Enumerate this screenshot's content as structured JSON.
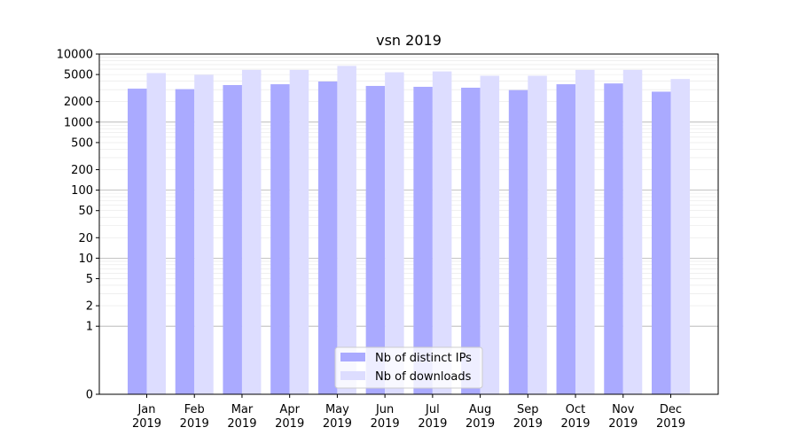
{
  "chart_data": {
    "type": "bar",
    "title": "vsn 2019",
    "xlabel": "",
    "ylabel": "",
    "yscale": "symlog",
    "ylim": [
      0,
      10000
    ],
    "yticks": [
      0,
      1,
      2,
      5,
      10,
      20,
      50,
      100,
      200,
      500,
      1000,
      2000,
      5000,
      10000
    ],
    "ytick_labels": [
      "0",
      "1",
      "2",
      "5",
      "10",
      "20",
      "50",
      "100",
      "200",
      "500",
      "1000",
      "2000",
      "5000",
      "10000"
    ],
    "grid": true,
    "legend_position": "bottom-center",
    "categories": [
      "Jan",
      "Feb",
      "Mar",
      "Apr",
      "May",
      "Jun",
      "Jul",
      "Aug",
      "Sep",
      "Oct",
      "Nov",
      "Dec"
    ],
    "category_years": [
      "2019",
      "2019",
      "2019",
      "2019",
      "2019",
      "2019",
      "2019",
      "2019",
      "2019",
      "2019",
      "2019",
      "2019"
    ],
    "series": [
      {
        "name": "Nb of distinct IPs",
        "color": "#aaaaff",
        "values": [
          3100,
          3050,
          3500,
          3600,
          3950,
          3400,
          3300,
          3200,
          2950,
          3600,
          3700,
          2800
        ]
      },
      {
        "name": "Nb of downloads",
        "color": "#ddddff",
        "values": [
          5250,
          4950,
          5850,
          5850,
          6700,
          5400,
          5550,
          4800,
          4800,
          5850,
          5850,
          4300
        ]
      }
    ]
  }
}
